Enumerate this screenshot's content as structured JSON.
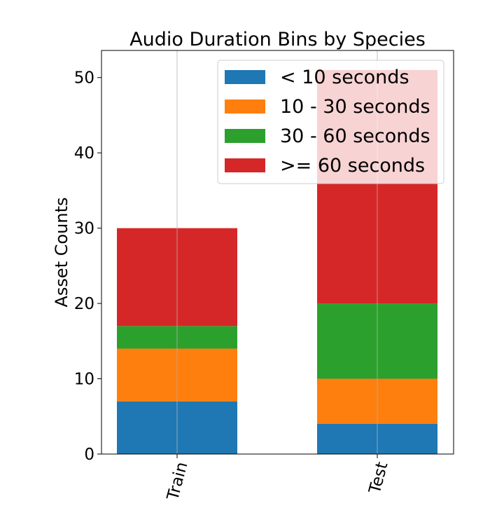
{
  "chart_data": {
    "type": "bar",
    "stacked": true,
    "title": "Audio Duration Bins by Species",
    "xlabel": "",
    "ylabel": "Asset Counts",
    "categories": [
      "Train",
      "Test"
    ],
    "series": [
      {
        "name": "< 10 seconds",
        "color": "#1f77b4",
        "values": [
          7,
          4
        ]
      },
      {
        "name": "10 - 30 seconds",
        "color": "#ff7f0e",
        "values": [
          7,
          6
        ]
      },
      {
        "name": "30 - 60 seconds",
        "color": "#2ca02c",
        "values": [
          3,
          10
        ]
      },
      {
        "name": ">= 60 seconds",
        "color": "#d62728",
        "values": [
          13,
          31
        ]
      }
    ],
    "ylim": [
      0,
      53.6
    ],
    "yticks": [
      0,
      10,
      20,
      30,
      40,
      50
    ],
    "grid": "vertical lines at category positions",
    "legend_position": "top-right"
  }
}
